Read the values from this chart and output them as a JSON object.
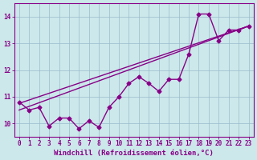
{
  "title": "",
  "xlabel": "Windchill (Refroidissement éolien,°C)",
  "ylabel": "",
  "bg_color": "#cce8ea",
  "line_color": "#880088",
  "grid_color": "#99bbcc",
  "xlim": [
    -0.5,
    23.5
  ],
  "ylim": [
    9.5,
    14.5
  ],
  "xticks": [
    0,
    1,
    2,
    3,
    4,
    5,
    6,
    7,
    8,
    9,
    10,
    11,
    12,
    13,
    14,
    15,
    16,
    17,
    18,
    19,
    20,
    21,
    22,
    23
  ],
  "yticks": [
    10,
    11,
    12,
    13,
    14
  ],
  "data_x": [
    0,
    1,
    2,
    3,
    4,
    5,
    6,
    7,
    8,
    9,
    10,
    11,
    12,
    13,
    14,
    15,
    16,
    17,
    18,
    19,
    20,
    21,
    22,
    23
  ],
  "data_y": [
    10.8,
    10.5,
    10.6,
    9.9,
    10.2,
    10.2,
    9.8,
    10.1,
    9.85,
    10.6,
    11.0,
    11.5,
    11.75,
    11.5,
    11.2,
    11.65,
    11.65,
    12.6,
    14.1,
    14.1,
    13.1,
    13.5,
    13.5,
    13.65
  ],
  "reg1_x0": 0,
  "reg1_y0": 10.75,
  "reg1_x1": 23,
  "reg1_y1": 13.65,
  "reg2_x0": 0,
  "reg2_y0": 10.5,
  "reg2_x1": 23,
  "reg2_y1": 13.65,
  "marker": "D",
  "marker_size": 2.5,
  "line_width": 1.0,
  "tick_fontsize": 5.5,
  "label_fontsize": 6.5
}
